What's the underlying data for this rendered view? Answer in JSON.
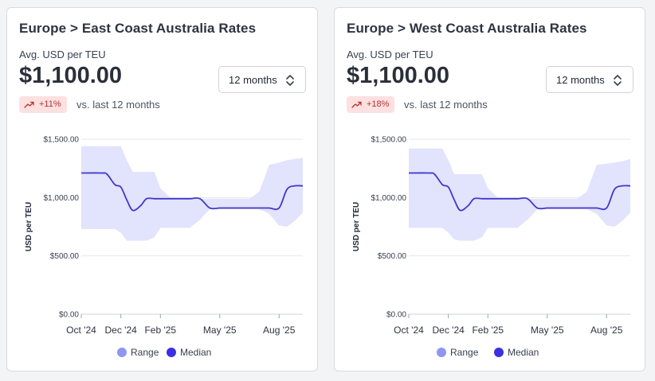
{
  "colors": {
    "range_fill": "#e2e3fd",
    "median_line": "#4338ca",
    "range_legend": "#8f96f2",
    "median_legend": "#3b30e0",
    "badge_bg": "#fde0e0",
    "badge_text": "#b83232",
    "grid": "#e5e7eb"
  },
  "cards": [
    {
      "title": "Europe > East Coast Australia Rates",
      "metric_label": "Avg. USD per TEU",
      "metric_value": "$1,100.00",
      "period_select": {
        "value": "12 months",
        "icon": "chevron-up-down-icon"
      },
      "change_badge": {
        "value": "+11%",
        "icon": "trend-up-icon"
      },
      "comparison_text": "vs. last 12 months",
      "legend": [
        {
          "label": "Range"
        },
        {
          "label": "Median"
        }
      ]
    },
    {
      "title": "Europe > West Coast Australia Rates",
      "metric_label": "Avg. USD per TEU",
      "metric_value": "$1,100.00",
      "period_select": {
        "value": "12 months",
        "icon": "chevron-up-down-icon"
      },
      "change_badge": {
        "value": "+18%",
        "icon": "trend-up-icon"
      },
      "comparison_text": "vs. last 12 months",
      "legend": [
        {
          "label": "Range"
        },
        {
          "label": "Median"
        }
      ]
    }
  ],
  "chart_data": [
    {
      "type": "area",
      "ylabel": "USD per TEU",
      "ylim": [
        0,
        1500
      ],
      "y_ticks": [
        "$0.00",
        "$500.00",
        "$1,000.00",
        "$1,500.00"
      ],
      "y_tick_values": [
        0,
        500,
        1000,
        1500
      ],
      "x_ticks": [
        "Oct '24",
        "Dec '24",
        "Feb '25",
        "May '25",
        "Aug '25"
      ],
      "x_tick_positions": [
        0,
        2,
        4,
        7,
        10
      ],
      "xlim": [
        0,
        11.2
      ],
      "grid": true,
      "legend_position": "bottom-center",
      "x": [
        0,
        1,
        1.3,
        1.7,
        2,
        2.3,
        2.6,
        3,
        3.3,
        3.7,
        4,
        4.5,
        5,
        5.5,
        6,
        6.5,
        7,
        7.5,
        8,
        8.5,
        9,
        9.5,
        10,
        10.4,
        10.8,
        11.2
      ],
      "series": [
        {
          "name": "Median",
          "values": [
            1210,
            1210,
            1200,
            1110,
            1090,
            980,
            890,
            930,
            990,
            990,
            990,
            990,
            990,
            990,
            990,
            910,
            910,
            910,
            910,
            910,
            910,
            910,
            910,
            1070,
            1100,
            1100
          ]
        },
        {
          "name": "Range",
          "low": [
            730,
            730,
            730,
            730,
            700,
            630,
            630,
            630,
            630,
            660,
            740,
            740,
            740,
            740,
            810,
            900,
            900,
            900,
            900,
            900,
            900,
            860,
            760,
            750,
            800,
            870
          ],
          "high": [
            1440,
            1440,
            1440,
            1440,
            1440,
            1320,
            1220,
            1220,
            1220,
            1220,
            1080,
            1000,
            990,
            990,
            990,
            990,
            990,
            990,
            990,
            990,
            1050,
            1280,
            1300,
            1320,
            1330,
            1340
          ]
        }
      ]
    },
    {
      "type": "area",
      "ylabel": "USD per TEU",
      "ylim": [
        0,
        1500
      ],
      "y_ticks": [
        "$0.00",
        "$500.00",
        "$1,000.00",
        "$1,500.00"
      ],
      "y_tick_values": [
        0,
        500,
        1000,
        1500
      ],
      "x_ticks": [
        "Oct '24",
        "Dec '24",
        "Feb '25",
        "May '25",
        "Aug '25"
      ],
      "x_tick_positions": [
        0,
        2,
        4,
        7,
        10
      ],
      "xlim": [
        0,
        11.2
      ],
      "grid": true,
      "legend_position": "bottom-center",
      "x": [
        0,
        1,
        1.3,
        1.7,
        2,
        2.3,
        2.6,
        3,
        3.3,
        3.7,
        4,
        4.5,
        5,
        5.5,
        6,
        6.5,
        7,
        7.5,
        8,
        8.5,
        9,
        9.5,
        10,
        10.4,
        10.8,
        11.2
      ],
      "series": [
        {
          "name": "Median",
          "values": [
            1210,
            1210,
            1200,
            1110,
            1090,
            980,
            890,
            930,
            990,
            990,
            990,
            990,
            990,
            990,
            990,
            910,
            910,
            910,
            910,
            910,
            910,
            910,
            910,
            1070,
            1100,
            1100
          ]
        },
        {
          "name": "Range",
          "low": [
            740,
            740,
            740,
            740,
            700,
            640,
            630,
            630,
            630,
            660,
            740,
            740,
            740,
            740,
            810,
            900,
            900,
            900,
            900,
            900,
            900,
            860,
            760,
            750,
            800,
            870
          ],
          "high": [
            1420,
            1420,
            1420,
            1420,
            1320,
            1200,
            1200,
            1200,
            1200,
            1200,
            1080,
            1000,
            990,
            990,
            990,
            990,
            990,
            990,
            990,
            990,
            1050,
            1280,
            1290,
            1300,
            1310,
            1330
          ]
        }
      ]
    }
  ]
}
